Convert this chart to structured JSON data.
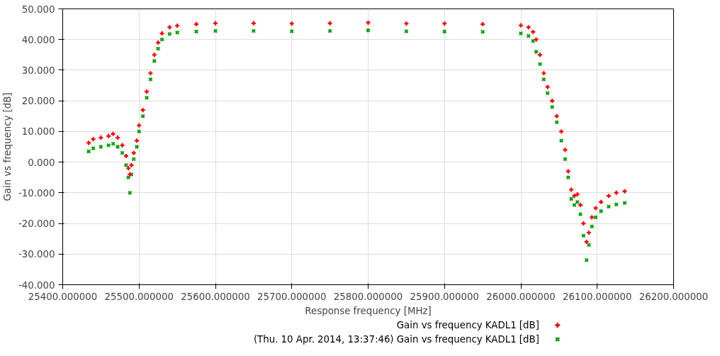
{
  "chart_data": {
    "type": "scatter",
    "xlabel": "Response frequency [MHz]",
    "ylabel": "Gain vs frequency [dB]",
    "xlim": [
      25400,
      26200
    ],
    "xticks": [
      {
        "value": 25400,
        "label": "25400.000000"
      },
      {
        "value": 25500,
        "label": "25500.000000"
      },
      {
        "value": 25600,
        "label": "25600.000000"
      },
      {
        "value": 25700,
        "label": "25700.000000"
      },
      {
        "value": 25800,
        "label": "25800.000000"
      },
      {
        "value": 25900,
        "label": "25900.000000"
      },
      {
        "value": 26000,
        "label": "26000.000000"
      },
      {
        "value": 26100,
        "label": "26100.000000"
      },
      {
        "value": 26200,
        "label": "26200.000000"
      }
    ],
    "ylim": [
      -40,
      50
    ],
    "yticks": [
      {
        "value": -40,
        "label": "-40.000"
      },
      {
        "value": -30,
        "label": "-30.000"
      },
      {
        "value": -20,
        "label": "-20.000"
      },
      {
        "value": -10,
        "label": "-10.000"
      },
      {
        "value": 0,
        "label": "0.000"
      },
      {
        "value": 10,
        "label": "10.000"
      },
      {
        "value": 20,
        "label": "20.000"
      },
      {
        "value": 30,
        "label": "30.000"
      },
      {
        "value": 40,
        "label": "40.000"
      },
      {
        "value": 50,
        "label": "50.000"
      }
    ],
    "grid": true,
    "legend": "bottom",
    "series": [
      {
        "name": "Gain vs frequency KADL1 [dB]",
        "color": "#ff0000",
        "marker": "cross",
        "x": [
          25434,
          25440,
          25450,
          25460,
          25466,
          25472,
          25478,
          25483,
          25486,
          25488,
          25490,
          25493,
          25497,
          25500,
          25505,
          25510,
          25515,
          25520,
          25525,
          25530,
          25540,
          25550,
          25575,
          25600,
          25650,
          25700,
          25750,
          25800,
          25850,
          25900,
          25950,
          26000,
          26010,
          26016,
          26020,
          26025,
          26030,
          26035,
          26041,
          26047,
          26053,
          26058,
          26062,
          26066,
          26070,
          26074,
          26078,
          26082,
          26086,
          26089,
          26093,
          26098,
          26105,
          26115,
          26125,
          26136
        ],
        "values": [
          6.3,
          7.5,
          8,
          8.5,
          9.2,
          8,
          5.5,
          2,
          -2,
          -4,
          -1,
          3,
          7,
          12,
          17,
          23,
          29,
          35,
          39,
          42,
          44,
          44.5,
          45,
          45.3,
          45.3,
          45.2,
          45.3,
          45.5,
          45.2,
          45.2,
          45,
          44.6,
          44,
          42.5,
          40,
          35,
          29,
          24.5,
          20,
          15,
          10,
          4,
          -3,
          -9,
          -11,
          -10.5,
          -14,
          -20,
          -26,
          -23,
          -18,
          -15,
          -13,
          -11,
          -10,
          -9.5
        ]
      },
      {
        "name": "(Thu. 10 Apr. 2014, 13:37:46) Gain vs frequency KADL1 [dB]",
        "color": "#00a000",
        "marker": "x",
        "x": [
          25434,
          25440,
          25450,
          25460,
          25466,
          25472,
          25478,
          25483,
          25486,
          25488,
          25490,
          25493,
          25497,
          25500,
          25505,
          25510,
          25515,
          25520,
          25525,
          25530,
          25540,
          25550,
          25575,
          25600,
          25650,
          25700,
          25750,
          25800,
          25850,
          25900,
          25950,
          26000,
          26010,
          26016,
          26020,
          26025,
          26030,
          26035,
          26041,
          26047,
          26053,
          26058,
          26062,
          26066,
          26070,
          26074,
          26078,
          26082,
          26086,
          26089,
          26093,
          26098,
          26105,
          26115,
          26125,
          26136
        ],
        "values": [
          3.5,
          4.5,
          5,
          5.5,
          6,
          5,
          3,
          -1,
          -5,
          -10,
          -4,
          1,
          5,
          10,
          15,
          21,
          27,
          33,
          37,
          40,
          41.8,
          42.3,
          42.6,
          42.8,
          42.8,
          42.7,
          42.8,
          43,
          42.7,
          42.6,
          42.5,
          42,
          41.2,
          39.5,
          36,
          32,
          27,
          22.5,
          18,
          13,
          7,
          1,
          -5,
          -12,
          -14,
          -13,
          -17,
          -24,
          -32,
          -27,
          -21,
          -18,
          -16,
          -14.5,
          -13.8,
          -13.3
        ]
      }
    ]
  }
}
